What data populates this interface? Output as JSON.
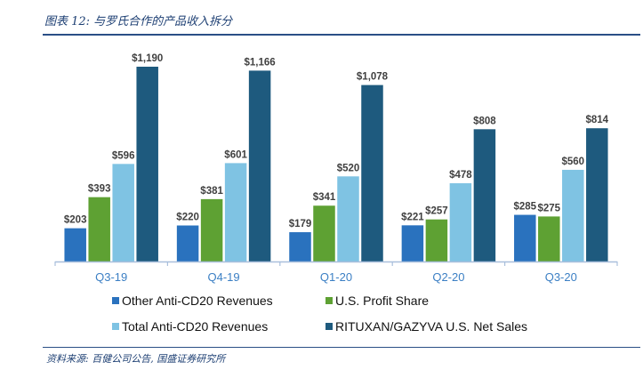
{
  "header": {
    "title": "图表 12:  与罗氏合作的产品收入拆分"
  },
  "footer": {
    "source": "资料来源:  百健公司公告,  国盛证券研究所"
  },
  "chart_data": {
    "type": "bar",
    "title": "",
    "xlabel": "",
    "ylabel": "",
    "ylim": [
      0,
      1190
    ],
    "grid": false,
    "categories": [
      "Q3-19",
      "Q4-19",
      "Q1-20",
      "Q2-20",
      "Q3-20"
    ],
    "series": [
      {
        "name": "Other Anti-CD20 Revenues",
        "color": "#2a72be",
        "values": [
          203,
          220,
          179,
          221,
          285
        ]
      },
      {
        "name": "U.S. Profit Share",
        "color": "#5ea133",
        "values": [
          393,
          381,
          341,
          257,
          275
        ]
      },
      {
        "name": "Total Anti-CD20 Revenues",
        "color": "#7fc3e3",
        "values": [
          596,
          601,
          520,
          478,
          560
        ]
      },
      {
        "name": "RITUXAN/GAZYVA U.S. Net Sales",
        "color": "#1e5a7e",
        "values": [
          1190,
          1166,
          1078,
          808,
          814
        ]
      }
    ],
    "data_labels": [
      [
        "$203",
        "$393",
        "$596",
        "$1,190"
      ],
      [
        "$220",
        "$381",
        "$601",
        "$1,166"
      ],
      [
        "$179",
        "$341",
        "$520",
        "$1,078"
      ],
      [
        "$221",
        "$257",
        "$478",
        "$808"
      ],
      [
        "$285",
        "$275",
        "$560",
        "$814"
      ]
    ],
    "legend_position": "bottom",
    "axis_color": "#a9bfdc",
    "tick_label_color": "#3b7fc4",
    "data_label_color": "#404040"
  }
}
